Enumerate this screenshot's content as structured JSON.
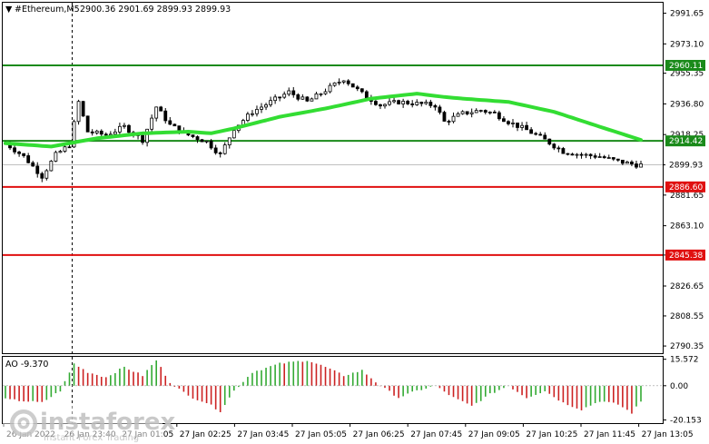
{
  "header": {
    "symbol_label": "#Ethereum,M5",
    "ohlc": "2900.36 2901.69 2899.93 2899.93"
  },
  "indicator": {
    "label": "AO -9.370",
    "ticks": [
      "15.572",
      "0.00",
      "-20.153"
    ]
  },
  "watermark": {
    "brand": "instaforex",
    "tagline": "Instant Forex Trading"
  },
  "chart_data": [
    {
      "type": "candlestick",
      "title": "#Ethereum,M5",
      "price_axis_ticks": [
        "2991.65",
        "2973.10",
        "2955.35",
        "2936.80",
        "2918.25",
        "2899.93",
        "2881.65",
        "2863.10",
        "2845.38",
        "2826.65",
        "2808.55",
        "2790.35"
      ],
      "time_labels": [
        "26 Jan 2022",
        "26 Jan 23:40",
        "27 Jan 01:05",
        "27 Jan 02:25",
        "27 Jan 03:45",
        "27 Jan 05:05",
        "27 Jan 06:25",
        "27 Jan 07:45",
        "27 Jan 09:05",
        "27 Jan 10:25",
        "27 Jan 11:45",
        "27 Jan 13:05"
      ],
      "ylim": [
        2786,
        2998
      ],
      "levels": [
        {
          "price": 2960.11,
          "label": "2960.11",
          "color": "#1a8a1a"
        },
        {
          "price": 2914.42,
          "label": "2914.42",
          "color": "#1a8a1a"
        },
        {
          "price": 2886.6,
          "label": "2886.60",
          "color": "#e01010"
        },
        {
          "price": 2845.38,
          "label": "2845.38",
          "color": "#e01010"
        }
      ],
      "current_price": {
        "price": 2899.93,
        "label": "2899.93"
      },
      "moving_average_color": "#33dd33",
      "candle_count": 140,
      "close_anchors": [
        [
          0,
          2913
        ],
        [
          4,
          2905
        ],
        [
          8,
          2893
        ],
        [
          11,
          2906
        ],
        [
          14,
          2912
        ],
        [
          16,
          2938
        ],
        [
          18,
          2920
        ],
        [
          22,
          2918
        ],
        [
          26,
          2923
        ],
        [
          30,
          2915
        ],
        [
          33,
          2935
        ],
        [
          36,
          2924
        ],
        [
          40,
          2918
        ],
        [
          44,
          2914
        ],
        [
          47,
          2906
        ],
        [
          50,
          2922
        ],
        [
          54,
          2932
        ],
        [
          58,
          2938
        ],
        [
          62,
          2944
        ],
        [
          66,
          2938
        ],
        [
          70,
          2945
        ],
        [
          74,
          2952
        ],
        [
          78,
          2943
        ],
        [
          82,
          2936
        ],
        [
          86,
          2938
        ],
        [
          90,
          2937
        ],
        [
          94,
          2936
        ],
        [
          96,
          2926
        ],
        [
          100,
          2931
        ],
        [
          104,
          2933
        ],
        [
          107,
          2931
        ],
        [
          110,
          2926
        ],
        [
          114,
          2921
        ],
        [
          118,
          2915
        ],
        [
          122,
          2908
        ],
        [
          126,
          2906
        ],
        [
          130,
          2905
        ],
        [
          134,
          2902
        ],
        [
          138,
          2900
        ],
        [
          139,
          2899.93
        ]
      ],
      "ma_anchors": [
        [
          0,
          2913
        ],
        [
          10,
          2911
        ],
        [
          20,
          2916
        ],
        [
          30,
          2919
        ],
        [
          40,
          2920
        ],
        [
          45,
          2919
        ],
        [
          50,
          2922
        ],
        [
          60,
          2929
        ],
        [
          70,
          2934
        ],
        [
          80,
          2940
        ],
        [
          90,
          2943
        ],
        [
          96,
          2941
        ],
        [
          100,
          2940
        ],
        [
          110,
          2938
        ],
        [
          120,
          2932
        ],
        [
          130,
          2923
        ],
        [
          139,
          2915
        ]
      ]
    },
    {
      "type": "bar",
      "title": "AO -9.370",
      "ylim": [
        -22,
        17
      ],
      "bar_count": 140,
      "up_color": "#33aa33",
      "down_color": "#cc2222",
      "value_anchors": [
        [
          0,
          -8
        ],
        [
          8,
          -10
        ],
        [
          12,
          -3
        ],
        [
          15,
          13
        ],
        [
          18,
          8
        ],
        [
          22,
          5
        ],
        [
          26,
          11
        ],
        [
          30,
          6
        ],
        [
          33,
          15
        ],
        [
          36,
          2
        ],
        [
          40,
          -6
        ],
        [
          44,
          -10
        ],
        [
          47,
          -15
        ],
        [
          50,
          -3
        ],
        [
          54,
          8
        ],
        [
          60,
          13
        ],
        [
          66,
          15
        ],
        [
          70,
          11
        ],
        [
          74,
          6
        ],
        [
          78,
          9
        ],
        [
          82,
          0
        ],
        [
          86,
          -7
        ],
        [
          90,
          -3
        ],
        [
          94,
          0
        ],
        [
          98,
          -7
        ],
        [
          102,
          -12
        ],
        [
          106,
          -5
        ],
        [
          110,
          0
        ],
        [
          114,
          -7
        ],
        [
          118,
          -3
        ],
        [
          122,
          -10
        ],
        [
          126,
          -14
        ],
        [
          130,
          -9
        ],
        [
          134,
          -11
        ],
        [
          137,
          -16
        ],
        [
          139,
          -9.37
        ]
      ]
    }
  ]
}
